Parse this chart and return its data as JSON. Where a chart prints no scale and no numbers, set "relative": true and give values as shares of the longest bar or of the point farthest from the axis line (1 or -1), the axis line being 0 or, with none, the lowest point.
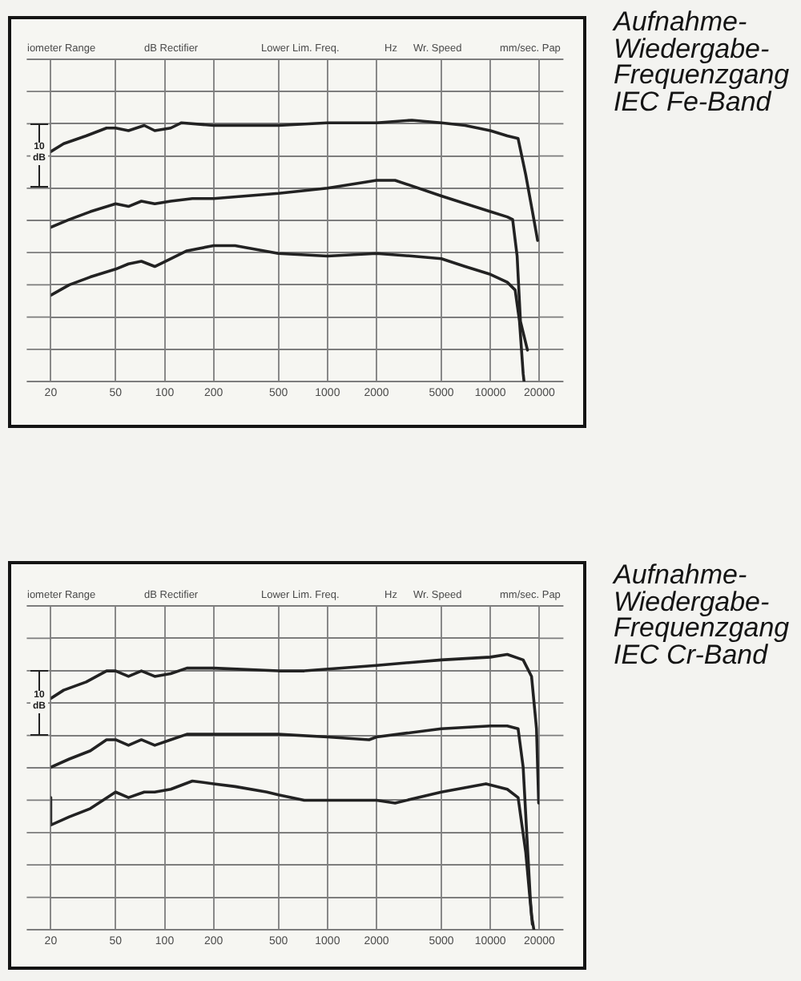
{
  "chart_data": [
    {
      "type": "line",
      "relative": true,
      "log": "x",
      "xlim": [
        20,
        20000
      ],
      "xticks": [
        20,
        50,
        100,
        200,
        500,
        1000,
        2000,
        5000,
        10000,
        20000
      ],
      "grid": true,
      "marker": "none",
      "annotations": [
        "Aufnahme-Wiedergabe-Frequenzgang IEC Fe-Band",
        "iometer Range",
        "dB Rectifier",
        "Lower Lim. Freq.",
        "Hz",
        "Wr. Speed",
        "mm/sec. Pap",
        "10 dB"
      ],
      "series": [
        {
          "color": "#222222",
          "x": [
            20,
            24,
            33,
            44,
            50,
            60,
            75,
            87,
            109,
            127,
            200,
            500,
            1000,
            2000,
            3300,
            5000,
            7000,
            10000,
            12700,
            14800,
            16500,
            18500,
            19500
          ],
          "values": [
            0.88,
            0.91,
            0.94,
            0.97,
            0.97,
            0.96,
            0.98,
            0.96,
            0.97,
            0.99,
            0.98,
            0.98,
            0.99,
            0.99,
            1.0,
            0.99,
            0.98,
            0.96,
            0.94,
            0.93,
            0.79,
            0.62,
            0.54
          ]
        },
        {
          "color": "#222222",
          "x": [
            20,
            26,
            35,
            50,
            60,
            72,
            87,
            109,
            148,
            200,
            500,
            1000,
            2000,
            2600,
            5000,
            10000,
            12700,
            13700,
            14600,
            15300,
            16900
          ],
          "values": [
            0.59,
            0.62,
            0.65,
            0.68,
            0.67,
            0.69,
            0.68,
            0.69,
            0.7,
            0.7,
            0.72,
            0.74,
            0.77,
            0.77,
            0.71,
            0.65,
            0.63,
            0.62,
            0.48,
            0.23,
            0.12
          ]
        },
        {
          "color": "#222222",
          "x": [
            20,
            26,
            35,
            50,
            60,
            72,
            87,
            109,
            137,
            200,
            271,
            500,
            1000,
            2000,
            3300,
            5000,
            7000,
            10000,
            12700,
            14200,
            15100,
            15900,
            16100
          ],
          "values": [
            0.33,
            0.37,
            0.4,
            0.43,
            0.45,
            0.46,
            0.44,
            0.47,
            0.5,
            0.52,
            0.52,
            0.49,
            0.48,
            0.49,
            0.48,
            0.47,
            0.44,
            0.41,
            0.38,
            0.35,
            0.23,
            0.03,
            0
          ]
        }
      ]
    },
    {
      "type": "line",
      "relative": true,
      "log": "x",
      "xlim": [
        20,
        20000
      ],
      "xticks": [
        20,
        50,
        100,
        200,
        500,
        1000,
        2000,
        5000,
        10000,
        20000
      ],
      "grid": true,
      "marker": "none",
      "annotations": [
        "Aufnahme-Wiedergabe-Frequenzgang IEC Cr-Band",
        "iometer Range",
        "dB Rectifier",
        "Lower Lim. Freq.",
        "Hz",
        "Wr. Speed",
        "mm/sec. Pap",
        "10 dB"
      ],
      "series": [
        {
          "color": "#222222",
          "x": [
            20,
            24,
            33,
            44,
            50,
            60,
            72,
            87,
            109,
            137,
            200,
            500,
            720,
            2000,
            5000,
            10000,
            12700,
            15900,
            17900,
            19200,
            19800
          ],
          "values": [
            0.84,
            0.87,
            0.9,
            0.94,
            0.94,
            0.92,
            0.94,
            0.92,
            0.93,
            0.95,
            0.95,
            0.94,
            0.94,
            0.96,
            0.98,
            0.99,
            1.0,
            0.98,
            0.92,
            0.73,
            0.46
          ]
        },
        {
          "color": "#222222",
          "x": [
            20,
            26,
            35,
            44,
            50,
            60,
            72,
            87,
            109,
            137,
            200,
            500,
            1000,
            1800,
            2000,
            5000,
            10000,
            12700,
            14800,
            15900,
            16900,
            17600,
            18100
          ],
          "values": [
            0.59,
            0.62,
            0.65,
            0.69,
            0.69,
            0.67,
            0.69,
            0.67,
            0.69,
            0.71,
            0.71,
            0.71,
            0.7,
            0.69,
            0.7,
            0.73,
            0.74,
            0.74,
            0.73,
            0.59,
            0.3,
            0.11,
            0.02
          ]
        },
        {
          "color": "#222222",
          "x": [
            20,
            20,
            26,
            35,
            50,
            60,
            75,
            87,
            109,
            148,
            200,
            271,
            425,
            500,
            720,
            2000,
            2600,
            5000,
            9400,
            12700,
            14800,
            16500,
            17900,
            18500
          ],
          "values": [
            0.48,
            0.38,
            0.41,
            0.44,
            0.5,
            0.48,
            0.5,
            0.5,
            0.51,
            0.54,
            0.53,
            0.52,
            0.5,
            0.49,
            0.47,
            0.47,
            0.46,
            0.5,
            0.53,
            0.51,
            0.48,
            0.28,
            0.05,
            0
          ]
        }
      ]
    }
  ]
}
